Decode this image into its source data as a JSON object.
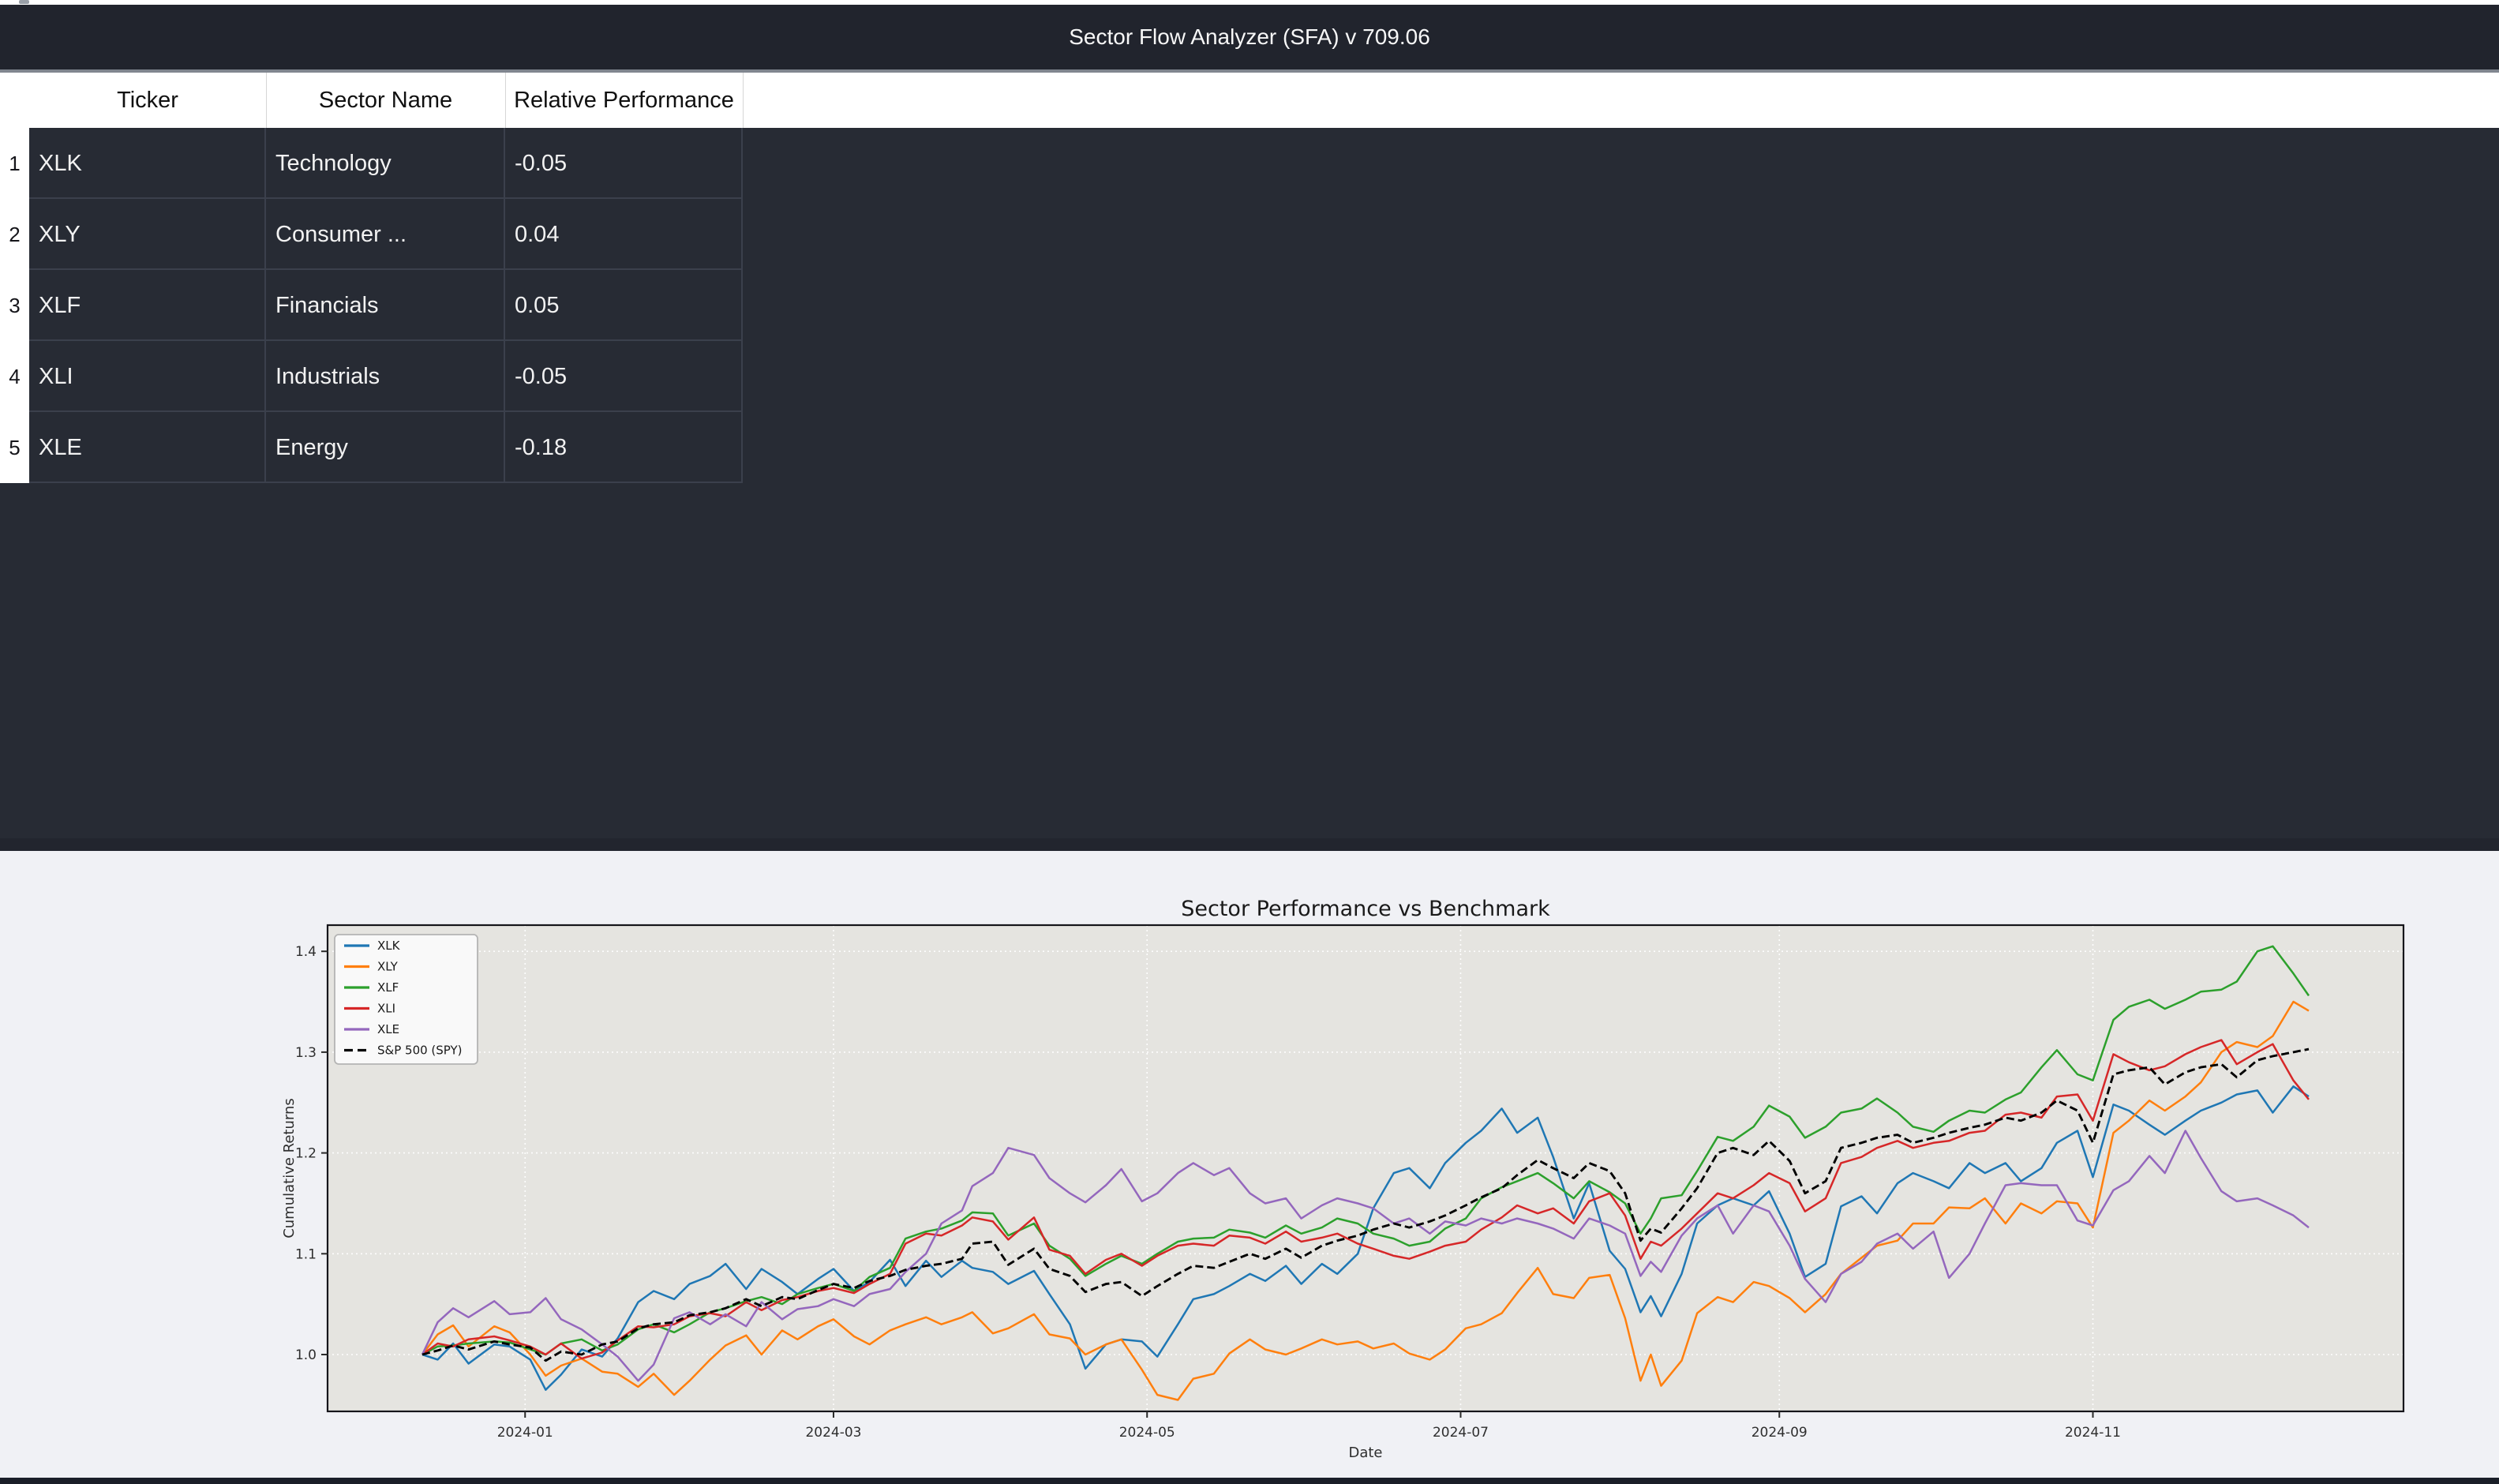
{
  "window": {
    "title": "Sector Flow Analyzer (SFA) v 709.06"
  },
  "table": {
    "columns": [
      "Ticker",
      "Sector Name",
      "Relative Performance"
    ],
    "rows": [
      {
        "num": "1",
        "ticker": "XLK",
        "sector": "Technology",
        "perf": "-0.05"
      },
      {
        "num": "2",
        "ticker": "XLY",
        "sector": "Consumer ...",
        "perf": "0.04"
      },
      {
        "num": "3",
        "ticker": "XLF",
        "sector": "Financials",
        "perf": "0.05"
      },
      {
        "num": "4",
        "ticker": "XLI",
        "sector": "Industrials",
        "perf": "-0.05"
      },
      {
        "num": "5",
        "ticker": "XLE",
        "sector": "Energy",
        "perf": "-0.18"
      }
    ]
  },
  "chart_data": {
    "type": "line",
    "title": "Sector Performance vs Benchmark",
    "xlabel": "Date",
    "ylabel": "Cumulative Returns",
    "grid": true,
    "legend_position": "upper left",
    "plot_bg": "#e5e4e0",
    "figure_bg": "#f0f1f5",
    "grid_color": "#ffffff",
    "start_date": "2023-12-12",
    "end_date": "2024-12-13",
    "x_ticks": [
      {
        "day": 20,
        "label": "2024-01"
      },
      {
        "day": 80,
        "label": "2024-03"
      },
      {
        "day": 141,
        "label": "2024-05"
      },
      {
        "day": 202,
        "label": "2024-07"
      },
      {
        "day": 264,
        "label": "2024-09"
      },
      {
        "day": 325,
        "label": "2024-11"
      }
    ],
    "y_ticks": [
      "1.0",
      "1.1",
      "1.2",
      "1.3",
      "1.4"
    ],
    "ylim": [
      0.944,
      1.426
    ],
    "days": [
      0,
      3,
      6,
      9,
      14,
      17,
      21,
      24,
      27,
      31,
      35,
      38,
      42,
      45,
      49,
      52,
      56,
      59,
      63,
      66,
      70,
      73,
      77,
      80,
      84,
      87,
      91,
      94,
      98,
      101,
      105,
      107,
      111,
      114,
      119,
      122,
      126,
      129,
      133,
      136,
      140,
      143,
      147,
      150,
      154,
      157,
      161,
      164,
      168,
      171,
      175,
      178,
      182,
      185,
      189,
      192,
      196,
      199,
      203,
      206,
      210,
      213,
      217,
      220,
      224,
      227,
      231,
      234,
      237,
      239,
      241,
      245,
      248,
      252,
      255,
      259,
      262,
      266,
      269,
      273,
      276,
      280,
      283,
      287,
      290,
      294,
      297,
      301,
      304,
      308,
      311,
      315,
      318,
      322,
      325,
      329,
      332,
      336,
      339,
      343,
      346,
      350,
      353,
      357,
      360,
      364,
      367
    ],
    "series": [
      {
        "name": "XLK",
        "color": "#1f77b4",
        "dash": null,
        "values": [
          1.0,
          0.995,
          1.011,
          0.991,
          1.01,
          1.008,
          0.995,
          0.965,
          0.98,
          1.005,
          0.998,
          1.016,
          1.052,
          1.063,
          1.055,
          1.07,
          1.078,
          1.09,
          1.065,
          1.085,
          1.072,
          1.06,
          1.075,
          1.085,
          1.063,
          1.072,
          1.094,
          1.068,
          1.093,
          1.077,
          1.093,
          1.086,
          1.082,
          1.07,
          1.083,
          1.06,
          1.03,
          0.986,
          1.01,
          1.015,
          1.013,
          0.998,
          1.03,
          1.055,
          1.06,
          1.068,
          1.08,
          1.073,
          1.088,
          1.07,
          1.09,
          1.08,
          1.1,
          1.145,
          1.18,
          1.185,
          1.165,
          1.19,
          1.21,
          1.222,
          1.244,
          1.22,
          1.235,
          1.196,
          1.135,
          1.17,
          1.103,
          1.085,
          1.042,
          1.058,
          1.038,
          1.08,
          1.13,
          1.148,
          1.155,
          1.148,
          1.162,
          1.12,
          1.077,
          1.09,
          1.147,
          1.157,
          1.14,
          1.17,
          1.18,
          1.172,
          1.165,
          1.19,
          1.18,
          1.19,
          1.172,
          1.185,
          1.21,
          1.222,
          1.176,
          1.248,
          1.242,
          1.228,
          1.218,
          1.232,
          1.242,
          1.25,
          1.258,
          1.262,
          1.24,
          1.266,
          1.256
        ]
      },
      {
        "name": "XLY",
        "color": "#ff7f0e",
        "dash": null,
        "values": [
          1.0,
          1.02,
          1.029,
          1.008,
          1.028,
          1.022,
          1.0,
          0.979,
          0.989,
          0.996,
          0.983,
          0.981,
          0.968,
          0.981,
          0.96,
          0.974,
          0.995,
          1.009,
          1.019,
          1.0,
          1.024,
          1.015,
          1.028,
          1.035,
          1.018,
          1.01,
          1.024,
          1.03,
          1.037,
          1.03,
          1.037,
          1.042,
          1.021,
          1.026,
          1.04,
          1.02,
          1.016,
          1.0,
          1.01,
          1.015,
          0.985,
          0.96,
          0.955,
          0.976,
          0.981,
          1.001,
          1.015,
          1.005,
          1.0,
          1.006,
          1.015,
          1.01,
          1.013,
          1.006,
          1.011,
          1.001,
          0.995,
          1.005,
          1.026,
          1.03,
          1.041,
          1.061,
          1.086,
          1.06,
          1.056,
          1.076,
          1.079,
          1.036,
          0.974,
          1.0,
          0.969,
          0.994,
          1.041,
          1.057,
          1.052,
          1.072,
          1.068,
          1.056,
          1.042,
          1.06,
          1.08,
          1.096,
          1.108,
          1.113,
          1.13,
          1.13,
          1.146,
          1.145,
          1.155,
          1.13,
          1.15,
          1.14,
          1.152,
          1.15,
          1.126,
          1.22,
          1.232,
          1.252,
          1.242,
          1.256,
          1.27,
          1.3,
          1.31,
          1.305,
          1.316,
          1.35,
          1.341
        ]
      },
      {
        "name": "XLF",
        "color": "#2ca02c",
        "dash": null,
        "values": [
          1.0,
          1.008,
          1.009,
          1.011,
          1.013,
          1.012,
          1.005,
          1.0,
          1.011,
          1.015,
          1.004,
          1.01,
          1.025,
          1.03,
          1.022,
          1.03,
          1.042,
          1.046,
          1.053,
          1.057,
          1.05,
          1.06,
          1.066,
          1.07,
          1.063,
          1.077,
          1.086,
          1.115,
          1.122,
          1.125,
          1.133,
          1.141,
          1.14,
          1.118,
          1.13,
          1.108,
          1.095,
          1.078,
          1.09,
          1.098,
          1.09,
          1.1,
          1.112,
          1.115,
          1.116,
          1.124,
          1.121,
          1.116,
          1.128,
          1.12,
          1.126,
          1.135,
          1.13,
          1.12,
          1.115,
          1.108,
          1.112,
          1.125,
          1.135,
          1.155,
          1.166,
          1.172,
          1.18,
          1.17,
          1.155,
          1.172,
          1.161,
          1.15,
          1.12,
          1.135,
          1.155,
          1.158,
          1.182,
          1.216,
          1.212,
          1.226,
          1.247,
          1.236,
          1.215,
          1.226,
          1.24,
          1.244,
          1.254,
          1.24,
          1.226,
          1.221,
          1.232,
          1.242,
          1.24,
          1.253,
          1.26,
          1.285,
          1.302,
          1.278,
          1.272,
          1.332,
          1.345,
          1.352,
          1.343,
          1.352,
          1.36,
          1.362,
          1.37,
          1.4,
          1.405,
          1.378,
          1.356
        ]
      },
      {
        "name": "XLI",
        "color": "#d62728",
        "dash": null,
        "values": [
          1.0,
          1.011,
          1.008,
          1.015,
          1.018,
          1.014,
          1.008,
          1.0,
          1.011,
          0.996,
          1.002,
          1.014,
          1.028,
          1.027,
          1.03,
          1.038,
          1.041,
          1.038,
          1.052,
          1.044,
          1.054,
          1.057,
          1.063,
          1.066,
          1.061,
          1.07,
          1.08,
          1.11,
          1.12,
          1.118,
          1.128,
          1.136,
          1.132,
          1.114,
          1.136,
          1.104,
          1.098,
          1.08,
          1.094,
          1.1,
          1.088,
          1.098,
          1.108,
          1.11,
          1.108,
          1.118,
          1.116,
          1.11,
          1.122,
          1.112,
          1.116,
          1.12,
          1.11,
          1.105,
          1.098,
          1.095,
          1.102,
          1.108,
          1.112,
          1.124,
          1.136,
          1.148,
          1.14,
          1.145,
          1.13,
          1.152,
          1.16,
          1.138,
          1.095,
          1.112,
          1.108,
          1.125,
          1.14,
          1.16,
          1.155,
          1.168,
          1.18,
          1.17,
          1.142,
          1.155,
          1.19,
          1.196,
          1.205,
          1.212,
          1.205,
          1.21,
          1.212,
          1.22,
          1.222,
          1.238,
          1.24,
          1.235,
          1.256,
          1.258,
          1.232,
          1.298,
          1.29,
          1.282,
          1.286,
          1.298,
          1.305,
          1.312,
          1.288,
          1.3,
          1.308,
          1.272,
          1.253
        ]
      },
      {
        "name": "XLE",
        "color": "#9467bd",
        "dash": null,
        "values": [
          1.0,
          1.032,
          1.046,
          1.037,
          1.053,
          1.04,
          1.042,
          1.056,
          1.035,
          1.025,
          1.01,
          0.998,
          0.974,
          0.99,
          1.036,
          1.042,
          1.03,
          1.04,
          1.028,
          1.052,
          1.035,
          1.045,
          1.048,
          1.055,
          1.048,
          1.06,
          1.065,
          1.082,
          1.1,
          1.13,
          1.143,
          1.167,
          1.18,
          1.205,
          1.198,
          1.175,
          1.16,
          1.151,
          1.168,
          1.184,
          1.152,
          1.16,
          1.18,
          1.19,
          1.178,
          1.185,
          1.16,
          1.15,
          1.155,
          1.135,
          1.148,
          1.155,
          1.15,
          1.145,
          1.13,
          1.135,
          1.12,
          1.132,
          1.128,
          1.135,
          1.13,
          1.135,
          1.13,
          1.125,
          1.115,
          1.135,
          1.128,
          1.12,
          1.078,
          1.092,
          1.082,
          1.118,
          1.135,
          1.148,
          1.12,
          1.148,
          1.142,
          1.108,
          1.075,
          1.052,
          1.08,
          1.092,
          1.11,
          1.12,
          1.105,
          1.122,
          1.076,
          1.1,
          1.13,
          1.168,
          1.17,
          1.168,
          1.168,
          1.133,
          1.128,
          1.163,
          1.172,
          1.197,
          1.18,
          1.222,
          1.195,
          1.162,
          1.152,
          1.155,
          1.148,
          1.138,
          1.126
        ]
      },
      {
        "name": "S&P 500 (SPY)",
        "color": "#000000",
        "dash": "10,5",
        "values": [
          1.0,
          1.004,
          1.009,
          1.005,
          1.013,
          1.01,
          1.007,
          0.994,
          1.003,
          1.0,
          1.01,
          1.013,
          1.026,
          1.03,
          1.032,
          1.039,
          1.042,
          1.046,
          1.055,
          1.048,
          1.057,
          1.055,
          1.064,
          1.07,
          1.066,
          1.073,
          1.078,
          1.084,
          1.088,
          1.09,
          1.095,
          1.11,
          1.112,
          1.089,
          1.105,
          1.085,
          1.078,
          1.062,
          1.07,
          1.072,
          1.058,
          1.068,
          1.08,
          1.088,
          1.086,
          1.092,
          1.1,
          1.095,
          1.105,
          1.096,
          1.108,
          1.113,
          1.118,
          1.124,
          1.13,
          1.126,
          1.132,
          1.138,
          1.148,
          1.156,
          1.165,
          1.178,
          1.193,
          1.185,
          1.175,
          1.19,
          1.182,
          1.16,
          1.113,
          1.125,
          1.121,
          1.145,
          1.165,
          1.2,
          1.205,
          1.198,
          1.212,
          1.192,
          1.16,
          1.172,
          1.205,
          1.21,
          1.215,
          1.218,
          1.21,
          1.215,
          1.22,
          1.225,
          1.228,
          1.235,
          1.232,
          1.24,
          1.252,
          1.242,
          1.21,
          1.278,
          1.282,
          1.285,
          1.268,
          1.28,
          1.285,
          1.288,
          1.275,
          1.292,
          1.296,
          1.3,
          1.303
        ]
      }
    ]
  },
  "colors": {
    "titlebar_bg": "#21242d",
    "table_bg": "#272b34",
    "table_grid": "#3b404c",
    "header_bg": "#ffffff",
    "figure_bg": "#f0f1f5",
    "plot_bg": "#e5e4e0"
  }
}
